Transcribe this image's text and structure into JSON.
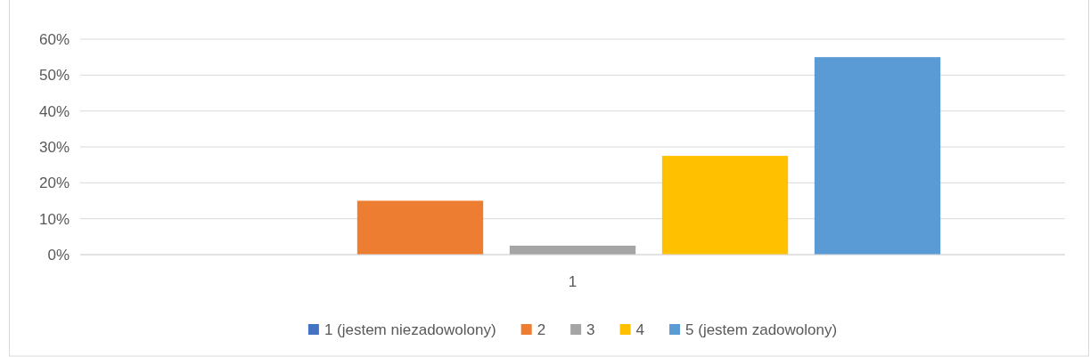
{
  "chart_data": {
    "type": "bar",
    "categories": [
      "1"
    ],
    "series": [
      {
        "name": "1 (jestem niezadowolony)",
        "color": "#4472c4",
        "values": [
          0
        ]
      },
      {
        "name": "2",
        "color": "#ed7d31",
        "values": [
          15
        ]
      },
      {
        "name": "3",
        "color": "#a5a5a5",
        "values": [
          2.5
        ]
      },
      {
        "name": "4",
        "color": "#ffc000",
        "values": [
          27.5
        ]
      },
      {
        "name": "5 (jestem zadowolony)",
        "color": "#5b9bd5",
        "values": [
          55
        ]
      }
    ],
    "ylim": [
      0,
      60
    ],
    "yticks": [
      {
        "value": 0,
        "label": "0%"
      },
      {
        "value": 10,
        "label": "10%"
      },
      {
        "value": 20,
        "label": "20%"
      },
      {
        "value": 30,
        "label": "30%"
      },
      {
        "value": 40,
        "label": "40%"
      },
      {
        "value": 50,
        "label": "50%"
      },
      {
        "value": 60,
        "label": "60%"
      }
    ],
    "grid": "y",
    "legend": "bottom"
  }
}
